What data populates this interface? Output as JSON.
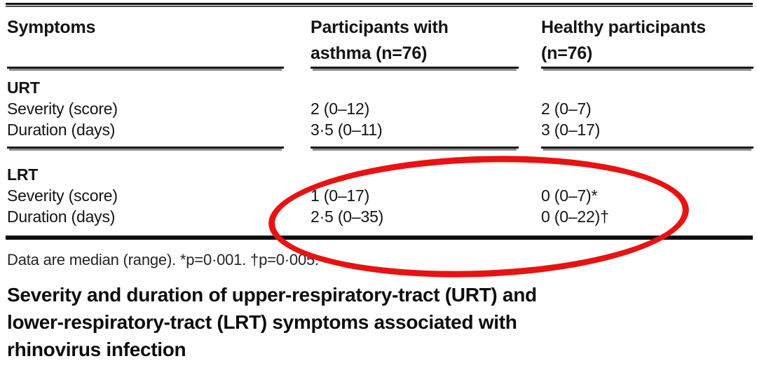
{
  "table": {
    "columns": [
      {
        "line1": "Symptoms"
      },
      {
        "line1": "Participants with",
        "line2": "asthma (n=76)"
      },
      {
        "line1": "Healthy participants",
        "line2": "(n=76)"
      }
    ],
    "sections": [
      {
        "label": "URT",
        "rows": [
          {
            "label": "Severity (score)",
            "asthma": "2 (0–12)",
            "healthy": "2 (0–7)"
          },
          {
            "label": "Duration (days)",
            "asthma": "3·5 (0–11)",
            "healthy": "3 (0–17)"
          }
        ]
      },
      {
        "label": "LRT",
        "rows": [
          {
            "label": "Severity (score)",
            "asthma": "1 (0–17)",
            "healthy": "0 (0–7)*"
          },
          {
            "label": "Duration (days)",
            "asthma": "2·5 (0–35)",
            "healthy": "0 (0–22)†"
          }
        ]
      }
    ]
  },
  "footnote": "Data are median (range). *p=0·001. †p=0·005.",
  "caption": {
    "line1": "Severity and duration of upper-respiratory-tract (URT) and",
    "line2": "lower-respiratory-tract (LRT) symptoms associated with",
    "line3": "rhinovirus infection"
  },
  "annotation": {
    "shape": "ellipse",
    "color": "#e81212",
    "highlights": "LRT severity and duration values"
  }
}
